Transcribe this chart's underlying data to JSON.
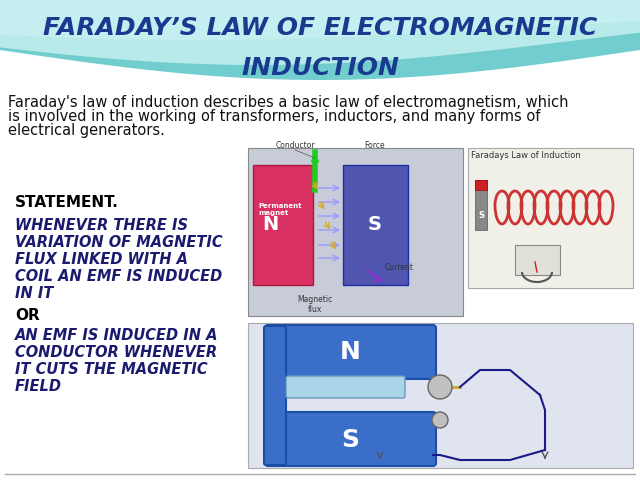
{
  "title_line1": "FARADAY’S LAW OF ELECTROMAGNETIC",
  "title_line2": "INDUCTION",
  "title_color": "#1a3a8f",
  "title_fontsize": 18,
  "bg_color": "#ffffff",
  "header_teal": "#72cece",
  "header_light": "#b8eaea",
  "header_wave": "#d0f0f0",
  "body_text_line1": "Faraday's law of induction describes a basic law of electromagnetism, which",
  "body_text_line2": "is involved in the working of transformers, inductors, and many forms of",
  "body_text_line3": "electrical generators.",
  "body_fontsize": 10.5,
  "body_color": "#111111",
  "statement_label": "STATEMENT.",
  "statement_fontsize": 11,
  "statement_color": "#000000",
  "italic_text1_lines": [
    "WHENEVER THERE IS",
    "VARIATION OF MAGNETIC",
    "FLUX LINKED WITH A",
    "COIL AN EMF IS INDUCED",
    "IN IT"
  ],
  "or_text": "OR",
  "italic_text2_lines": [
    "AN EMF IS INDUCED IN A",
    "CONDUCTOR WHENEVER",
    "IT CUTS THE MAGNETIC",
    "FIELD"
  ],
  "italic_fontsize": 10.5,
  "italic_color": "#1a1a6e",
  "or_color": "#000000",
  "or_fontsize": 11,
  "slide_bg": "#e8e8e8",
  "img1_label": "Faradays Law of Induction",
  "bottom_line_color": "#aaaaaa"
}
